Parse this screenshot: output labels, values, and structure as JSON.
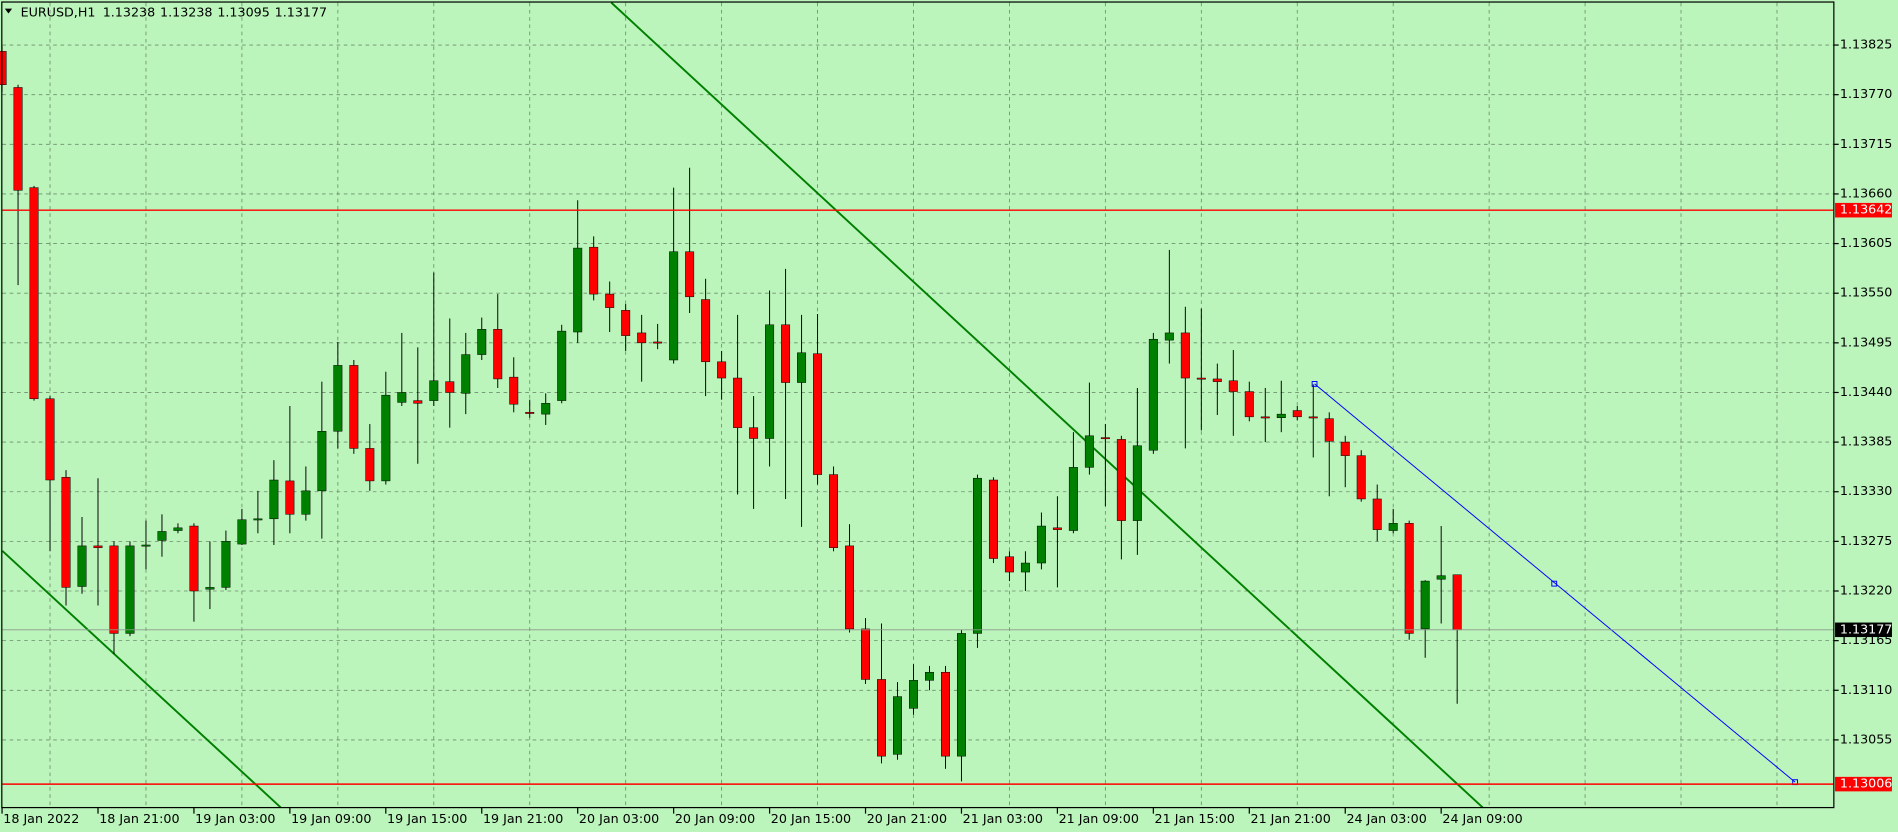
{
  "chart_data": {
    "type": "candlestick",
    "title": "EURUSD,H1",
    "categories": [
      "18 Jan 2022",
      null,
      null,
      null,
      null,
      null,
      "18 Jan 21:00",
      null,
      null,
      null,
      null,
      null,
      "19 Jan 03:00",
      null,
      null,
      null,
      null,
      null,
      "19 Jan 09:00",
      null,
      null,
      null,
      null,
      null,
      "19 Jan 15:00",
      null,
      null,
      null,
      null,
      null,
      "19 Jan 21:00",
      null,
      null,
      null,
      null,
      null,
      "20 Jan 03:00",
      null,
      null,
      null,
      null,
      null,
      "20 Jan 09:00",
      null,
      null,
      null,
      null,
      null,
      "20 Jan 15:00",
      null,
      null,
      null,
      null,
      null,
      "20 Jan 21:00",
      null,
      null,
      null,
      null,
      null,
      "21 Jan 03:00",
      null,
      null,
      null,
      null,
      null,
      "21 Jan 09:00",
      null,
      null,
      null,
      null,
      null,
      "21 Jan 15:00",
      null,
      null,
      null,
      null,
      null,
      "21 Jan 21:00",
      null,
      null,
      null,
      null,
      null,
      "24 Jan 03:00",
      null,
      null,
      null,
      null,
      null,
      "24 Jan 09:00",
      null
    ],
    "open": [
      1.13818,
      1.13778,
      1.13667,
      1.13433,
      1.13346,
      1.13225,
      1.1327,
      1.1327,
      1.13173,
      1.1327,
      1.13276,
      1.13287,
      1.13292,
      1.13222,
      1.13224,
      1.13272,
      1.13299,
      1.133,
      1.13342,
      1.13305,
      1.13331,
      1.13397,
      1.1347,
      1.13378,
      1.13342,
      1.13429,
      1.13431,
      1.13431,
      1.13452,
      1.13439,
      1.13482,
      1.1351,
      1.13457,
      1.13418,
      1.13416,
      1.13431,
      1.13507,
      1.13601,
      1.13549,
      1.13531,
      1.13506,
      1.13496,
      1.13476,
      1.13596,
      1.13543,
      1.13474,
      1.13456,
      1.13401,
      1.13389,
      1.13515,
      1.13451,
      1.13483,
      1.13349,
      1.1327,
      1.13178,
      1.13122,
      1.13039,
      1.1309,
      1.13121,
      1.1313,
      1.13037,
      1.13173,
      1.13343,
      1.13258,
      1.13241,
      1.13251,
      1.1329,
      1.13287,
      1.13357,
      1.1339,
      1.13388,
      1.13298,
      1.13376,
      1.13498,
      1.13506,
      1.13456,
      1.13455,
      1.13453,
      1.13441,
      1.13413,
      1.13412,
      1.1342,
      1.13413,
      1.13411,
      1.13385,
      1.1337,
      1.13322,
      1.13287,
      1.13295,
      1.13178,
      1.13233,
      1.13238
    ],
    "high": [
      1.13824,
      1.13781,
      1.13669,
      1.13436,
      1.13354,
      1.13302,
      1.13345,
      1.13275,
      1.13275,
      1.13298,
      1.13305,
      1.13295,
      1.13295,
      1.13275,
      1.13287,
      1.13311,
      1.13331,
      1.13365,
      1.13425,
      1.13358,
      1.13452,
      1.13496,
      1.13476,
      1.13405,
      1.13463,
      1.13506,
      1.1349,
      1.13573,
      1.13522,
      1.13506,
      1.13523,
      1.13549,
      1.13479,
      1.13432,
      1.13439,
      1.13515,
      1.13653,
      1.13613,
      1.13563,
      1.13538,
      1.13526,
      1.13516,
      1.13667,
      1.13689,
      1.13566,
      1.13486,
      1.13526,
      1.13436,
      1.13553,
      1.13577,
      1.13526,
      1.13527,
      1.13358,
      1.13294,
      1.1319,
      1.13184,
      1.13119,
      1.13139,
      1.13137,
      1.13137,
      1.13177,
      1.13349,
      1.13346,
      1.13264,
      1.13264,
      1.13307,
      1.13325,
      1.13396,
      1.13451,
      1.13405,
      1.13392,
      1.13445,
      1.13506,
      1.13598,
      1.13535,
      1.13533,
      1.13472,
      1.13487,
      1.13452,
      1.13445,
      1.13453,
      1.13425,
      1.13449,
      1.13418,
      1.13392,
      1.13376,
      1.13338,
      1.13311,
      1.13298,
      1.13232,
      1.13292,
      1.13238
    ],
    "low": [
      1.13773,
      1.13559,
      1.13431,
      1.13264,
      1.13204,
      1.13217,
      1.13204,
      1.1315,
      1.1317,
      1.13244,
      1.13258,
      1.13284,
      1.13186,
      1.132,
      1.13221,
      1.13271,
      1.13284,
      1.13271,
      1.13284,
      1.13298,
      1.13278,
      1.13378,
      1.13372,
      1.13331,
      1.13338,
      1.13425,
      1.13361,
      1.13425,
      1.13401,
      1.13416,
      1.13476,
      1.13445,
      1.13418,
      1.13412,
      1.13404,
      1.13428,
      1.13495,
      1.13542,
      1.13507,
      1.13486,
      1.13452,
      1.13488,
      1.13472,
      1.13528,
      1.13436,
      1.13432,
      1.13327,
      1.13311,
      1.13358,
      1.13322,
      1.13291,
      1.13338,
      1.13264,
      1.13174,
      1.13117,
      1.13029,
      1.13033,
      1.13083,
      1.1311,
      1.13023,
      1.13009,
      1.13157,
      1.13251,
      1.13231,
      1.1322,
      1.13244,
      1.13224,
      1.13284,
      1.13349,
      1.13314,
      1.13255,
      1.1326,
      1.13372,
      1.13472,
      1.13378,
      1.13398,
      1.13415,
      1.13392,
      1.13408,
      1.13385,
      1.13396,
      1.13409,
      1.13368,
      1.13325,
      1.13335,
      1.13319,
      1.13275,
      1.13284,
      1.13166,
      1.13146,
      1.13184,
      1.13095
    ],
    "close": [
      1.13781,
      1.13664,
      1.13433,
      1.13343,
      1.13224,
      1.1327,
      1.13268,
      1.13173,
      1.1327,
      1.13271,
      1.13286,
      1.1329,
      1.1322,
      1.13224,
      1.13275,
      1.13299,
      1.133,
      1.13343,
      1.13305,
      1.13331,
      1.13397,
      1.1347,
      1.13378,
      1.13342,
      1.13437,
      1.1344,
      1.13428,
      1.13453,
      1.1344,
      1.13482,
      1.1351,
      1.13455,
      1.13427,
      1.13417,
      1.13428,
      1.13508,
      1.136,
      1.13549,
      1.13534,
      1.13503,
      1.13495,
      1.13495,
      1.13596,
      1.13546,
      1.13474,
      1.13456,
      1.13401,
      1.13389,
      1.13515,
      1.13451,
      1.13484,
      1.13349,
      1.13268,
      1.13178,
      1.13122,
      1.13037,
      1.13103,
      1.13121,
      1.1313,
      1.13037,
      1.13173,
      1.13345,
      1.13256,
      1.13241,
      1.13251,
      1.13292,
      1.13288,
      1.13357,
      1.13392,
      1.13389,
      1.13298,
      1.13381,
      1.13499,
      1.13506,
      1.13456,
      1.13455,
      1.13452,
      1.13441,
      1.13413,
      1.13412,
      1.13416,
      1.13413,
      1.13412,
      1.13386,
      1.1337,
      1.13322,
      1.13288,
      1.13295,
      1.13173,
      1.13231,
      1.13237,
      1.13177
    ],
    "up_color": "#008000",
    "down_color": "#ff0000",
    "ylim": [
      1.1298,
      1.13872
    ],
    "yticks": [
      1.13825,
      {
        "value": 1.1377,
        "label": "1.13770"
      },
      1.13715,
      {
        "value": 1.1366,
        "label": "1.13660"
      },
      1.13605,
      {
        "value": 1.1355,
        "label": "1.13550"
      },
      1.13495,
      {
        "value": 1.1344,
        "label": "1.13440"
      },
      1.13385,
      {
        "value": 1.1333,
        "label": "1.13330"
      },
      1.13275,
      {
        "value": 1.1322,
        "label": "1.13220"
      },
      1.13165,
      {
        "value": 1.1311,
        "label": "1.13110"
      },
      1.13055
    ],
    "grid": true,
    "hlines": [
      {
        "value": 1.13642,
        "color": "#ff0000"
      },
      {
        "value": 1.13006,
        "color": "#ff0000"
      }
    ]
  }
}
